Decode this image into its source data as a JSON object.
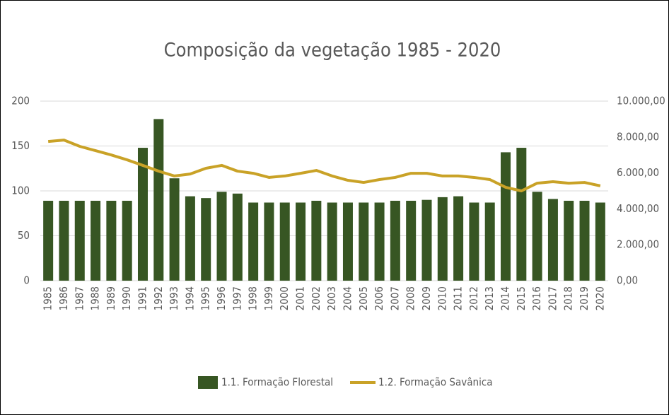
{
  "chart_data": {
    "type": "bar_line",
    "title": "Composição da vegetação 1985 - 2020",
    "categories": [
      "1985",
      "1986",
      "1987",
      "1988",
      "1989",
      "1990",
      "1991",
      "1992",
      "1993",
      "1994",
      "1995",
      "1996",
      "1997",
      "1998",
      "1999",
      "2000",
      "2001",
      "2002",
      "2003",
      "2004",
      "2005",
      "2006",
      "2007",
      "2008",
      "2009",
      "2010",
      "2011",
      "2012",
      "2013",
      "2014",
      "2015",
      "2016",
      "2017",
      "2018",
      "2019",
      "2020"
    ],
    "series": [
      {
        "name": "1.1. Formação Florestal",
        "color": "#375623",
        "type": "bar",
        "values": [
          89,
          89,
          89,
          89,
          89,
          89,
          148,
          180,
          114,
          94,
          92,
          99,
          97,
          87,
          87,
          87,
          87,
          89,
          87,
          87,
          87,
          87,
          89,
          89,
          90,
          93,
          94,
          87,
          87,
          143,
          148,
          99,
          91,
          89,
          89,
          87
        ]
      },
      {
        "name": "1.2. Formação Savânica",
        "color": "#c9a227",
        "type": "line",
        "axis": "y2",
        "values": [
          7750,
          7830,
          7480,
          7240,
          7000,
          6730,
          6420,
          6100,
          5830,
          5940,
          6260,
          6420,
          6100,
          5980,
          5750,
          5830,
          5980,
          6140,
          5830,
          5590,
          5470,
          5630,
          5750,
          5980,
          5980,
          5830,
          5830,
          5750,
          5630,
          5200,
          5000,
          5430,
          5510,
          5430,
          5470,
          5280
        ]
      }
    ],
    "ylim": [
      0,
      200
    ],
    "yticks": [
      0,
      50,
      100,
      150,
      200
    ],
    "y2lim": [
      0,
      10000
    ],
    "y2ticks": [
      {
        "value": 0,
        "label": "0,00"
      },
      {
        "value": 2000,
        "label": "2.000,00"
      },
      {
        "value": 4000,
        "label": "4.000,00"
      },
      {
        "value": 6000,
        "label": "6.000,00"
      },
      {
        "value": 8000,
        "label": "8.000,00"
      },
      {
        "value": 10000,
        "label": "10.000,00"
      }
    ],
    "grid": true,
    "legend": "bottom"
  }
}
